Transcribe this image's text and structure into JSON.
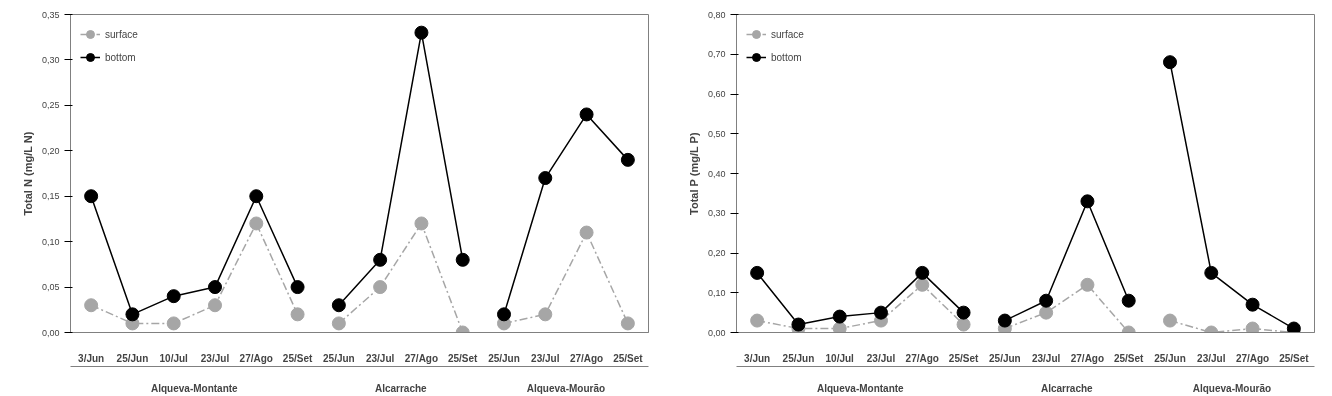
{
  "chart_data": [
    {
      "type": "line",
      "ylabel": "Total N (mg/L N)",
      "categories": [
        "3/Jun",
        "25/Jun",
        "10/Jul",
        "23/Jul",
        "27/Ago",
        "25/Set",
        "25/Jun",
        "23/Jul",
        "27/Ago",
        "25/Set",
        "25/Jun",
        "23/Jul",
        "27/Ago",
        "25/Set"
      ],
      "annotations": [
        "Alqueva-Montante",
        "Alcarrache",
        "Alqueva-Mourão"
      ],
      "series": [
        {
          "name": "surface",
          "color": "#a6a6a6",
          "line_style": "dashed",
          "values": [
            0.03,
            0.01,
            0.01,
            0.03,
            0.12,
            0.02,
            0.01,
            0.05,
            0.12,
            0.0,
            0.01,
            0.02,
            0.11,
            0.01
          ]
        },
        {
          "name": "bottom",
          "color": "#000000",
          "line_style": "solid",
          "values": [
            0.15,
            0.02,
            0.04,
            0.05,
            0.15,
            0.05,
            0.03,
            0.08,
            0.33,
            0.08,
            0.02,
            0.17,
            0.24,
            0.19
          ]
        }
      ],
      "ylim": [
        0,
        0.35
      ],
      "yticks": [
        {
          "value": 0,
          "label": "0,00"
        },
        {
          "value": 0.05,
          "label": "0,05"
        },
        {
          "value": 0.1,
          "label": "0,10"
        },
        {
          "value": 0.15,
          "label": "0,15"
        },
        {
          "value": 0.2,
          "label": "0,20"
        },
        {
          "value": 0.25,
          "label": "0,25"
        },
        {
          "value": 0.3,
          "label": "0,30"
        },
        {
          "value": 0.35,
          "label": "0,35"
        }
      ],
      "marker": "circle",
      "grid": false,
      "legend": "top left"
    },
    {
      "type": "line",
      "ylabel": "Total P (mg/L P)",
      "categories": [
        "3/Jun",
        "25/Jun",
        "10/Jul",
        "23/Jul",
        "27/Ago",
        "25/Set",
        "25/Jun",
        "23/Jul",
        "27/Ago",
        "25/Set",
        "25/Jun",
        "23/Jul",
        "27/Ago",
        "25/Set"
      ],
      "annotations": [
        "Alqueva-Montante",
        "Alcarrache",
        "Alqueva-Mourão"
      ],
      "series": [
        {
          "name": "surface",
          "color": "#a6a6a6",
          "line_style": "dashed",
          "values": [
            0.03,
            0.01,
            0.01,
            0.03,
            0.12,
            0.02,
            0.01,
            0.05,
            0.12,
            0.0,
            0.03,
            0.0,
            0.01,
            0.0
          ]
        },
        {
          "name": "bottom",
          "color": "#000000",
          "line_style": "solid",
          "values": [
            0.15,
            0.02,
            0.04,
            0.05,
            0.15,
            0.05,
            0.03,
            0.08,
            0.33,
            0.08,
            0.68,
            0.15,
            0.07,
            0.01
          ]
        }
      ],
      "ylim": [
        0,
        0.8
      ],
      "yticks": [
        {
          "value": 0,
          "label": "0,00"
        },
        {
          "value": 0.1,
          "label": "0,10"
        },
        {
          "value": 0.2,
          "label": "0,20"
        },
        {
          "value": 0.3,
          "label": "0,30"
        },
        {
          "value": 0.4,
          "label": "0,40"
        },
        {
          "value": 0.5,
          "label": "0,50"
        },
        {
          "value": 0.6,
          "label": "0,60"
        },
        {
          "value": 0.7,
          "label": "0,70"
        },
        {
          "value": 0.8,
          "label": "0,80"
        }
      ],
      "marker": "circle",
      "grid": false,
      "legend": "top left"
    }
  ]
}
